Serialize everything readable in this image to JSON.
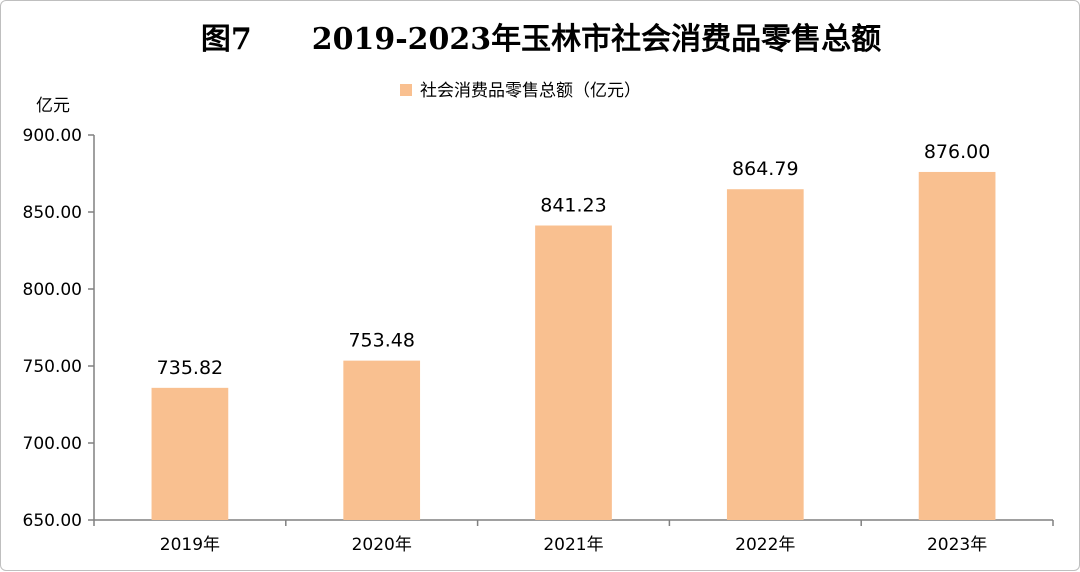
{
  "chart_data": {
    "type": "bar",
    "title": "图7　　2019-2023年玉林市社会消费品零售总额",
    "ylabel": "亿元",
    "xlabel": "",
    "categories": [
      "2019年",
      "2020年",
      "2021年",
      "2022年",
      "2023年"
    ],
    "series": [
      {
        "name": "社会消费品零售总额（亿元）",
        "values": [
          735.82,
          753.48,
          841.23,
          864.79,
          876.0
        ],
        "color": "#f9c090"
      }
    ],
    "data_labels": [
      "735.82",
      "753.48",
      "841.23",
      "864.79",
      "876.00"
    ],
    "ylim": [
      650,
      900
    ],
    "yticks": [
      "650.00",
      "700.00",
      "750.00",
      "800.00",
      "850.00",
      "900.00"
    ],
    "grid": false,
    "legend_position": "top"
  }
}
